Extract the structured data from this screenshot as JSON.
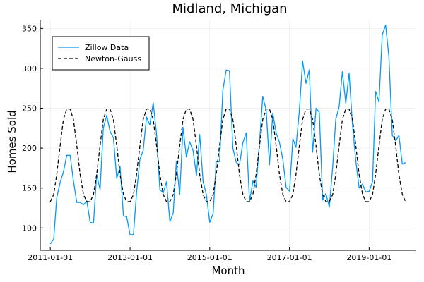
{
  "chart_data": {
    "type": "line",
    "title": "Midland, Michigan",
    "xlabel": "Month",
    "ylabel": "Homes Sold",
    "x_ticks": [
      "2011-01-01",
      "2013-01-01",
      "2015-01-01",
      "2017-01-01",
      "2019-01-01"
    ],
    "y_ticks": [
      100,
      150,
      200,
      250,
      300,
      350
    ],
    "xlim": [
      "2011-01-01",
      "2019-12-01"
    ],
    "ylim": [
      72,
      360
    ],
    "grid": true,
    "legend_position": "top-left",
    "x": [
      "2011-01-01",
      "2011-02-01",
      "2011-03-01",
      "2011-04-01",
      "2011-05-01",
      "2011-06-01",
      "2011-07-01",
      "2011-08-01",
      "2011-09-01",
      "2011-10-01",
      "2011-11-01",
      "2011-12-01",
      "2012-01-01",
      "2012-02-01",
      "2012-03-01",
      "2012-04-01",
      "2012-05-01",
      "2012-06-01",
      "2012-07-01",
      "2012-08-01",
      "2012-09-01",
      "2012-10-01",
      "2012-11-01",
      "2012-12-01",
      "2013-01-01",
      "2013-02-01",
      "2013-03-01",
      "2013-04-01",
      "2013-05-01",
      "2013-06-01",
      "2013-07-01",
      "2013-08-01",
      "2013-09-01",
      "2013-10-01",
      "2013-11-01",
      "2013-12-01",
      "2014-01-01",
      "2014-02-01",
      "2014-03-01",
      "2014-04-01",
      "2014-05-01",
      "2014-06-01",
      "2014-07-01",
      "2014-08-01",
      "2014-09-01",
      "2014-10-01",
      "2014-11-01",
      "2014-12-01",
      "2015-01-01",
      "2015-02-01",
      "2015-03-01",
      "2015-04-01",
      "2015-05-01",
      "2015-06-01",
      "2015-07-01",
      "2015-08-01",
      "2015-09-01",
      "2015-10-01",
      "2015-11-01",
      "2015-12-01",
      "2016-01-01",
      "2016-02-01",
      "2016-03-01",
      "2016-04-01",
      "2016-05-01",
      "2016-06-01",
      "2016-07-01",
      "2016-08-01",
      "2016-09-01",
      "2016-10-01",
      "2016-11-01",
      "2016-12-01",
      "2017-01-01",
      "2017-02-01",
      "2017-03-01",
      "2017-04-01",
      "2017-05-01",
      "2017-06-01",
      "2017-07-01",
      "2017-08-01",
      "2017-09-01",
      "2017-10-01",
      "2017-11-01",
      "2017-12-01",
      "2018-01-01",
      "2018-02-01",
      "2018-03-01",
      "2018-04-01",
      "2018-05-01",
      "2018-06-01",
      "2018-07-01",
      "2018-08-01",
      "2018-09-01",
      "2018-10-01",
      "2018-11-01",
      "2018-12-01",
      "2019-01-01",
      "2019-02-01",
      "2019-03-01",
      "2019-04-01",
      "2019-05-01",
      "2019-06-01",
      "2019-07-01",
      "2019-08-01",
      "2019-09-01",
      "2019-10-01",
      "2019-11-01",
      "2019-12-01"
    ],
    "series": [
      {
        "name": "Zillow Data",
        "style": "solid",
        "color": "#009AF9",
        "values": [
          80,
          86,
          138,
          157,
          170,
          191,
          191,
          159,
          132,
          132,
          129,
          134,
          107,
          106,
          167,
          148,
          225,
          241,
          221,
          213,
          162,
          177,
          115,
          114,
          91,
          92,
          144,
          186,
          197,
          239,
          229,
          257,
          217,
          148,
          144,
          158,
          108,
          119,
          183,
          142,
          226,
          189,
          208,
          197,
          166,
          217,
          158,
          142,
          107,
          118,
          183,
          183,
          272,
          298,
          297,
          200,
          182,
          179,
          207,
          219,
          133,
          159,
          151,
          207,
          265,
          248,
          179,
          244,
          219,
          207,
          186,
          151,
          146,
          212,
          201,
          247,
          309,
          281,
          298,
          195,
          250,
          245,
          135,
          143,
          126,
          177,
          236,
          252,
          296,
          256,
          294,
          229,
          184,
          150,
          155,
          145,
          146,
          158,
          271,
          258,
          342,
          354,
          315,
          216,
          209,
          216,
          180,
          182
        ]
      },
      {
        "name": "Newton-Gauss",
        "style": "dashed",
        "color": "#000000",
        "values": [
          133,
          142,
          167,
          203,
          236,
          249,
          249,
          236,
          203,
          167,
          142,
          133,
          133,
          142,
          167,
          203,
          236,
          249,
          249,
          236,
          203,
          167,
          142,
          133,
          133,
          142,
          167,
          203,
          236,
          249,
          249,
          236,
          203,
          167,
          142,
          133,
          133,
          142,
          167,
          203,
          236,
          249,
          249,
          236,
          203,
          167,
          142,
          133,
          133,
          142,
          167,
          203,
          236,
          249,
          249,
          236,
          203,
          167,
          142,
          133,
          133,
          142,
          167,
          203,
          236,
          249,
          249,
          236,
          203,
          167,
          142,
          133,
          133,
          142,
          167,
          203,
          236,
          249,
          249,
          236,
          203,
          167,
          142,
          133,
          133,
          142,
          167,
          203,
          236,
          249,
          249,
          236,
          203,
          167,
          142,
          133,
          133,
          142,
          167,
          203,
          236,
          249,
          249,
          236,
          203,
          167,
          142,
          133
        ]
      }
    ]
  }
}
